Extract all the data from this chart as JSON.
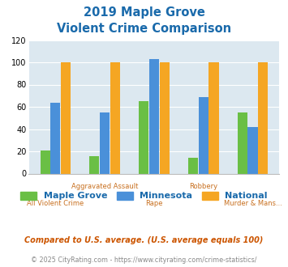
{
  "title_line1": "2019 Maple Grove",
  "title_line2": "Violent Crime Comparison",
  "categories": [
    "All Violent Crime",
    "Aggravated Assault",
    "Rape",
    "Robbery",
    "Murder & Mans..."
  ],
  "upper_labels": [
    1,
    3
  ],
  "lower_labels": [
    0,
    2,
    4
  ],
  "maple_grove": [
    21,
    16,
    65,
    14,
    55
  ],
  "minnesota": [
    64,
    55,
    103,
    69,
    42
  ],
  "national": [
    100,
    100,
    100,
    100,
    100
  ],
  "colors": {
    "maple_grove": "#6abf45",
    "minnesota": "#4a90d9",
    "national": "#f5a623"
  },
  "ylim": [
    0,
    120
  ],
  "yticks": [
    0,
    20,
    40,
    60,
    80,
    100,
    120
  ],
  "legend_labels": [
    "Maple Grove",
    "Minnesota",
    "National"
  ],
  "footnote1": "Compared to U.S. average. (U.S. average equals 100)",
  "footnote2": "© 2025 CityRating.com - https://www.cityrating.com/crime-statistics/",
  "title_color": "#1a6aab",
  "xlabel_color": "#c87020",
  "footnote1_color": "#cc5500",
  "footnote2_color": "#888888",
  "bg_color": "#dce8f0",
  "fig_bg_color": "#ffffff",
  "bar_width": 0.2,
  "bar_gap": 0.01
}
